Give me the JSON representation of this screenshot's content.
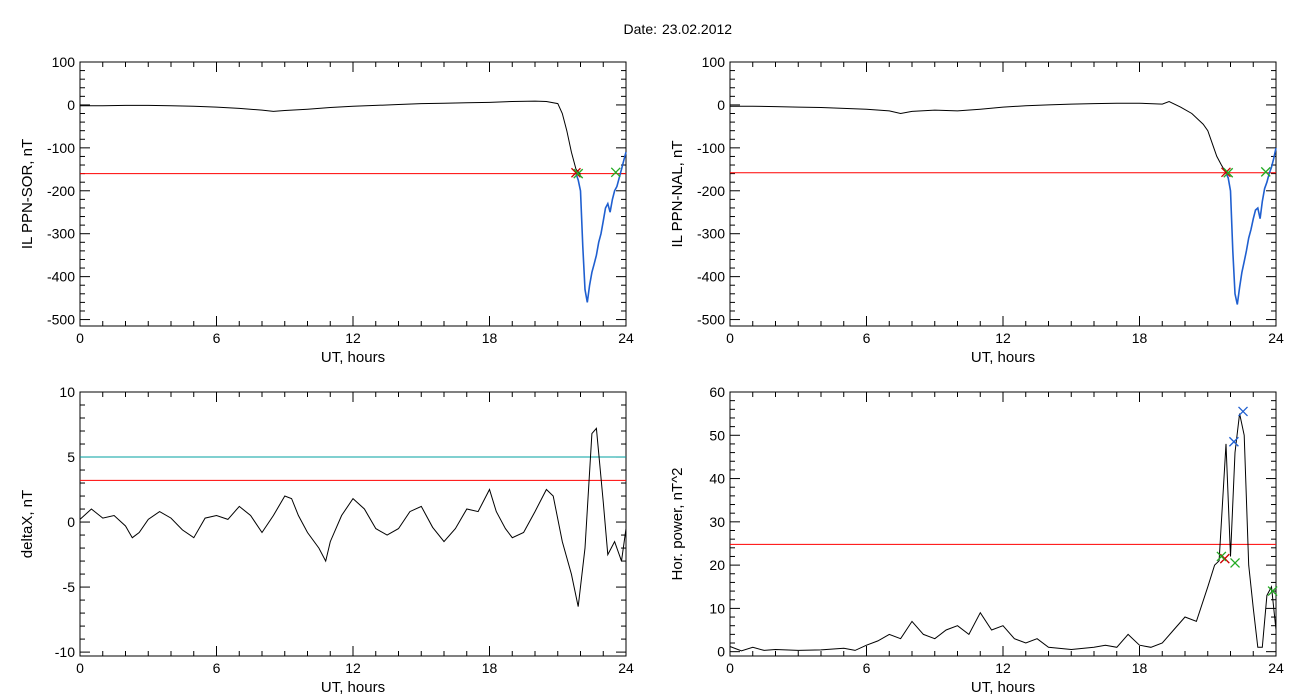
{
  "header": {
    "date_label": "Date:",
    "date_value": "23.02.2012"
  },
  "colors": {
    "trace": "#000000",
    "highlight": "#1f5fd0",
    "threshold_red": "#ff0000",
    "threshold_teal": "#00a0a0",
    "mark_red": "#cc0000",
    "mark_green": "#22aa22",
    "mark_blue": "#1f5fd0"
  },
  "chart_data": [
    {
      "type": "line",
      "id": "sor",
      "xlabel": "UT, hours",
      "ylabel": "IL PPN-SOR, nT",
      "xlim": [
        0,
        24
      ],
      "ylim": [
        -515,
        100
      ],
      "xticks": [
        0,
        6,
        12,
        18,
        24
      ],
      "yticks": [
        100,
        0,
        -100,
        -200,
        -300,
        -400,
        -500
      ],
      "series": [
        {
          "style": "trace",
          "x": [
            0,
            0.3,
            1,
            2,
            3,
            4,
            5,
            6,
            7,
            8,
            8.5,
            9,
            10,
            11,
            12,
            13,
            14,
            15,
            16,
            17,
            18,
            19,
            20,
            20.5,
            21,
            21.2,
            21.4,
            21.6,
            21.8,
            22
          ],
          "y": [
            -2,
            -2,
            -2,
            -1,
            -1,
            -2,
            -3,
            -5,
            -8,
            -12,
            -15,
            -13,
            -10,
            -6,
            -3,
            -1,
            1,
            3,
            4,
            5,
            6,
            8,
            9,
            8,
            3,
            -20,
            -60,
            -110,
            -150,
            -162
          ]
        },
        {
          "style": "highlight",
          "x": [
            21.8,
            21.9,
            22.0,
            22.1,
            22.2,
            22.3,
            22.4,
            22.5,
            22.6,
            22.7,
            22.8,
            22.9,
            23.0,
            23.1,
            23.2,
            23.3,
            23.4,
            23.5,
            23.6,
            23.7,
            23.8,
            23.9,
            24.0
          ],
          "y": [
            -160,
            -175,
            -200,
            -330,
            -430,
            -460,
            -420,
            -390,
            -370,
            -350,
            -320,
            -300,
            -270,
            -240,
            -230,
            -250,
            -220,
            -200,
            -190,
            -170,
            -150,
            -130,
            -110
          ]
        }
      ],
      "hlines": [
        {
          "y": -160,
          "color": "red"
        }
      ],
      "markers": [
        {
          "x": 21.8,
          "y": -158,
          "color": "red"
        },
        {
          "x": 21.9,
          "y": -160,
          "color": "green"
        },
        {
          "x": 23.55,
          "y": -157,
          "color": "green"
        }
      ]
    },
    {
      "type": "line",
      "id": "nal",
      "xlabel": "UT, hours",
      "ylabel": "IL PPN-NAL, nT",
      "xlim": [
        0,
        24
      ],
      "ylim": [
        -515,
        100
      ],
      "xticks": [
        0,
        6,
        12,
        18,
        24
      ],
      "yticks": [
        100,
        0,
        -100,
        -200,
        -300,
        -400,
        -500
      ],
      "series": [
        {
          "style": "trace",
          "x": [
            0,
            1,
            2,
            3,
            4,
            5,
            6,
            7,
            7.5,
            8,
            9,
            10,
            11,
            12,
            13,
            14,
            15,
            16,
            17,
            18,
            19,
            19.3,
            19.8,
            20.3,
            20.8,
            21.0,
            21.2,
            21.4,
            21.6,
            21.8
          ],
          "y": [
            -3,
            -3,
            -4,
            -5,
            -6,
            -8,
            -10,
            -14,
            -20,
            -15,
            -12,
            -14,
            -10,
            -5,
            -2,
            0,
            2,
            3,
            4,
            4,
            2,
            8,
            -5,
            -20,
            -45,
            -60,
            -90,
            -120,
            -140,
            -158
          ]
        },
        {
          "style": "highlight",
          "x": [
            21.8,
            21.9,
            22.0,
            22.1,
            22.2,
            22.3,
            22.4,
            22.5,
            22.6,
            22.7,
            22.8,
            22.9,
            23.0,
            23.1,
            23.2,
            23.3,
            23.4,
            23.5,
            23.6,
            23.7,
            23.8,
            23.9,
            24.0
          ],
          "y": [
            -158,
            -170,
            -200,
            -340,
            -440,
            -465,
            -425,
            -390,
            -365,
            -340,
            -310,
            -290,
            -265,
            -245,
            -240,
            -265,
            -225,
            -195,
            -180,
            -160,
            -145,
            -125,
            -100
          ]
        }
      ],
      "hlines": [
        {
          "y": -158,
          "color": "red"
        }
      ],
      "markers": [
        {
          "x": 21.8,
          "y": -157,
          "color": "red"
        },
        {
          "x": 21.9,
          "y": -158,
          "color": "green"
        },
        {
          "x": 23.55,
          "y": -156,
          "color": "green"
        }
      ]
    },
    {
      "type": "line",
      "id": "deltax",
      "xlabel": "UT, hours",
      "ylabel": "deltaX, nT",
      "xlim": [
        0,
        24
      ],
      "ylim": [
        -10.3,
        10
      ],
      "xticks": [
        0,
        6,
        12,
        18,
        24
      ],
      "yticks": [
        10,
        5,
        0,
        -5,
        -10
      ],
      "series": [
        {
          "style": "trace",
          "x": [
            0,
            0.5,
            1,
            1.5,
            2,
            2.3,
            2.6,
            3,
            3.5,
            4,
            4.5,
            5,
            5.5,
            6,
            6.5,
            7,
            7.5,
            8,
            8.5,
            9,
            9.3,
            9.6,
            10,
            10.5,
            10.8,
            11,
            11.5,
            12,
            12.5,
            13,
            13.5,
            14,
            14.5,
            15,
            15.5,
            16,
            16.5,
            17,
            17.5,
            18,
            18.3,
            18.7,
            19,
            19.5,
            20,
            20.5,
            20.8,
            21.2,
            21.6,
            21.9,
            22.2,
            22.5,
            22.7,
            23,
            23.2,
            23.5,
            23.8,
            24
          ],
          "y": [
            0.2,
            1,
            0.3,
            0.5,
            -0.3,
            -1.2,
            -0.8,
            0.2,
            0.8,
            0.3,
            -0.6,
            -1.2,
            0.3,
            0.5,
            0.2,
            1.2,
            0.5,
            -0.8,
            0.5,
            2.0,
            1.8,
            0.5,
            -0.8,
            -2.0,
            -3.0,
            -1.5,
            0.5,
            1.8,
            1.0,
            -0.5,
            -1.0,
            -0.5,
            0.8,
            1.2,
            -0.4,
            -1.5,
            -0.5,
            1.0,
            0.8,
            2.5,
            0.8,
            -0.5,
            -1.2,
            -0.8,
            0.8,
            2.5,
            2.0,
            -1.5,
            -4.0,
            -6.5,
            -2.0,
            6.8,
            7.2,
            1.5,
            -2.5,
            -1.5,
            -3.0,
            -0.5
          ]
        }
      ],
      "hlines": [
        {
          "y": 5,
          "color": "teal"
        },
        {
          "y": 3.2,
          "color": "red"
        }
      ],
      "markers": []
    },
    {
      "type": "line",
      "id": "power",
      "xlabel": "UT, hours",
      "ylabel": "Hor. power, nT^2",
      "xlim": [
        0,
        24
      ],
      "ylim": [
        -1,
        60
      ],
      "xticks": [
        0,
        6,
        12,
        18,
        24
      ],
      "yticks": [
        60,
        50,
        40,
        30,
        20,
        10,
        0
      ],
      "series": [
        {
          "style": "trace",
          "x": [
            0,
            0.5,
            1,
            1.5,
            2,
            3,
            4,
            5,
            5.5,
            6,
            6.5,
            7,
            7.5,
            8,
            8.5,
            9,
            9.5,
            10,
            10.5,
            11,
            11.5,
            12,
            12.5,
            13,
            13.5,
            14,
            15,
            16,
            16.5,
            17,
            17.5,
            18,
            18.5,
            19,
            19.5,
            20,
            20.5,
            21,
            21.3,
            21.5,
            21.8,
            22.0,
            22.2,
            22.4,
            22.6,
            22.8,
            23.0,
            23.2,
            23.4,
            23.6,
            23.8,
            24
          ],
          "y": [
            1.2,
            0.2,
            1,
            0.3,
            0.5,
            0.3,
            0.4,
            0.8,
            0.3,
            1.5,
            2.5,
            4,
            3,
            7,
            4,
            3,
            5,
            6,
            4,
            9,
            5,
            6,
            3,
            2,
            3,
            1,
            0.5,
            1,
            1.5,
            1,
            4,
            1.5,
            1,
            2,
            5,
            8,
            7,
            15,
            20,
            21,
            48,
            22,
            46,
            55,
            50,
            20,
            10,
            1,
            1,
            13,
            15,
            5
          ]
        }
      ],
      "hlines": [
        {
          "y": 24.8,
          "color": "red"
        }
      ],
      "markers": [
        {
          "x": 21.75,
          "y": 21.5,
          "color": "red"
        },
        {
          "x": 21.6,
          "y": 22,
          "color": "green"
        },
        {
          "x": 22.2,
          "y": 20.5,
          "color": "green"
        },
        {
          "x": 23.85,
          "y": 14,
          "color": "green"
        },
        {
          "x": 22.15,
          "y": 48.5,
          "color": "blue"
        },
        {
          "x": 22.55,
          "y": 55.5,
          "color": "blue"
        }
      ]
    }
  ]
}
